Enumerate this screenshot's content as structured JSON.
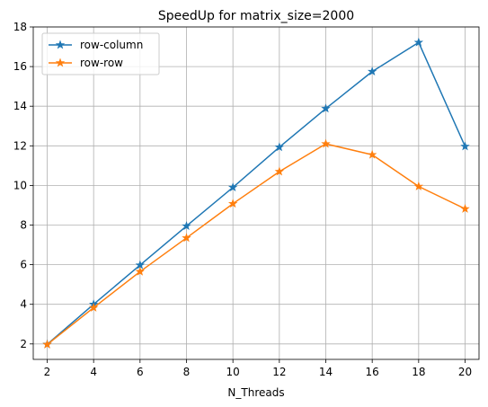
{
  "chart_data": {
    "type": "line",
    "title": "SpeedUp for matrix_size=2000",
    "xlabel": "N_Threads",
    "ylabel": "",
    "x": [
      2,
      4,
      6,
      8,
      10,
      12,
      14,
      16,
      18,
      20
    ],
    "xlim": [
      1.4,
      20.6
    ],
    "ylim": [
      1.22,
      18.0
    ],
    "xticks": [
      2,
      4,
      6,
      8,
      10,
      12,
      14,
      16,
      18,
      20
    ],
    "yticks": [
      2,
      4,
      6,
      8,
      10,
      12,
      14,
      16,
      18
    ],
    "grid": true,
    "legend_position": "top-left",
    "series": [
      {
        "name": "row-column",
        "color": "#1f77b4",
        "marker": "star",
        "values": [
          1.98,
          4.0,
          5.98,
          7.95,
          9.9,
          11.93,
          13.88,
          15.75,
          17.22,
          11.97
        ]
      },
      {
        "name": "row-row",
        "color": "#ff7f0e",
        "marker": "star",
        "values": [
          1.97,
          3.83,
          5.65,
          7.35,
          9.08,
          10.7,
          12.1,
          11.55,
          9.95,
          8.82
        ]
      }
    ]
  }
}
